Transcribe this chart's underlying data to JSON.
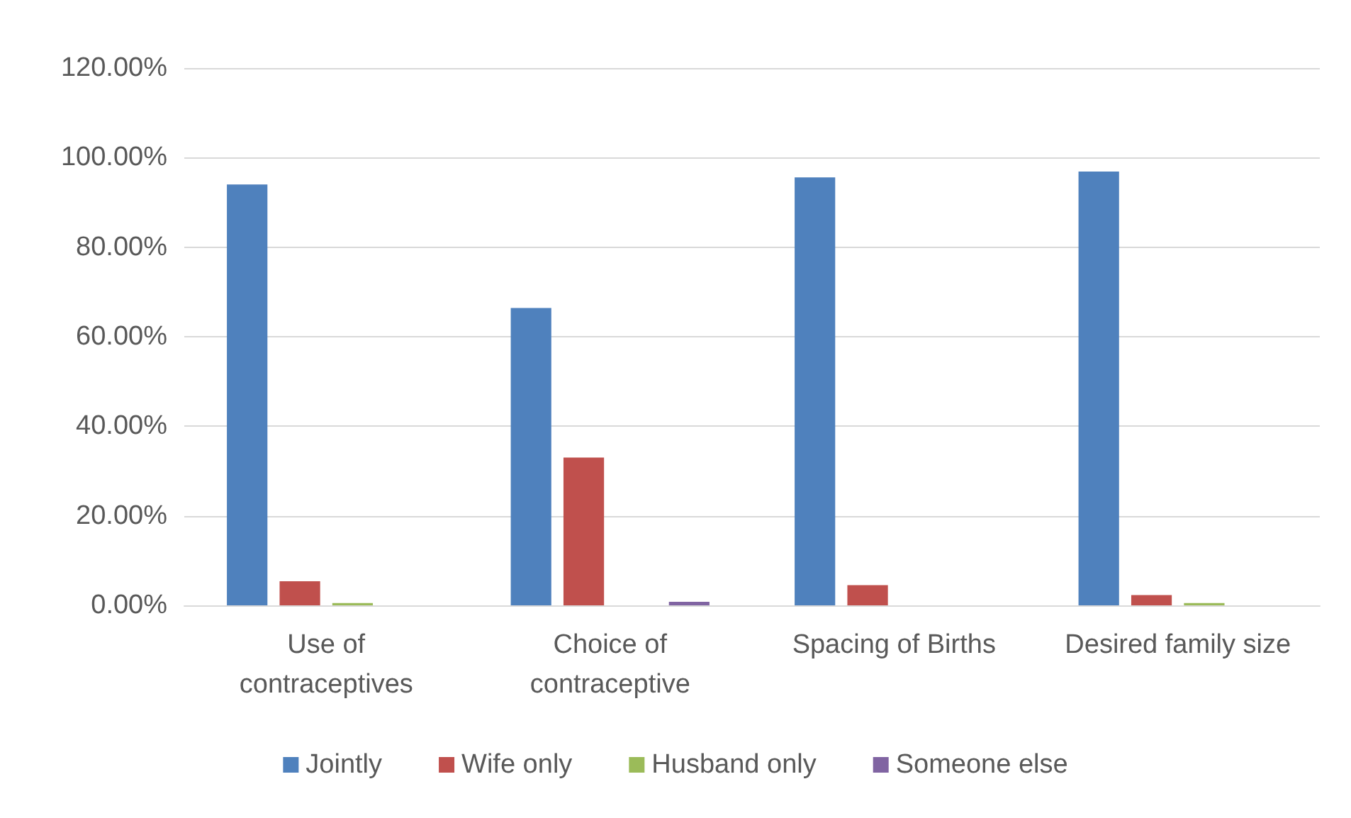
{
  "chart_data": {
    "type": "bar",
    "categories": [
      "Use of\ncontraceptives",
      "Choice of\ncontraceptive",
      "Spacing of Births",
      "Desired family size"
    ],
    "series": [
      {
        "name": "Jointly",
        "color": "#4f81bd",
        "values": [
          94.0,
          66.4,
          95.6,
          96.9
        ]
      },
      {
        "name": "Wife only",
        "color": "#c0504d",
        "values": [
          5.4,
          33.0,
          4.5,
          2.3
        ]
      },
      {
        "name": "Husband only",
        "color": "#9bbb59",
        "values": [
          0.5,
          0,
          0,
          0.5
        ]
      },
      {
        "name": "Someone else",
        "color": "#8064a2",
        "values": [
          0,
          0.8,
          0,
          0
        ]
      }
    ],
    "ylim": [
      0,
      120
    ],
    "yticks": [
      {
        "value": 0,
        "label": "0.00%"
      },
      {
        "value": 20,
        "label": "20.00%"
      },
      {
        "value": 40,
        "label": "40.00%"
      },
      {
        "value": 60,
        "label": "60.00%"
      },
      {
        "value": 80,
        "label": "80.00%"
      },
      {
        "value": 100,
        "label": "100.00%"
      },
      {
        "value": 120,
        "label": "120.00%"
      }
    ],
    "grid": "y",
    "legend": "bottom"
  }
}
